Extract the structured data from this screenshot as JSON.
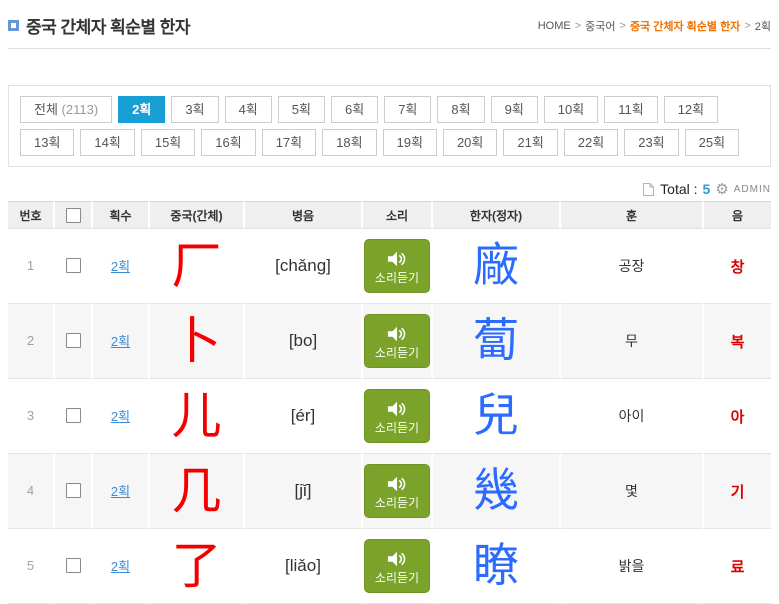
{
  "header": {
    "title": "중국 간체자 획순별 한자",
    "breadcrumb": {
      "items": [
        "HOME",
        "중국어",
        "중국 간체자 획순별 한자",
        "2획"
      ],
      "active_index": 2,
      "separator": ">"
    }
  },
  "filters": {
    "all_label": "전체",
    "all_count": "(2113)",
    "selected": "2획",
    "stroke_buttons": [
      "2획",
      "3획",
      "4획",
      "5획",
      "6획",
      "7획",
      "8획",
      "9획",
      "10획",
      "11획",
      "12획",
      "13획",
      "14획",
      "15획",
      "16획",
      "17획",
      "18획",
      "19획",
      "20획",
      "21획",
      "22획",
      "23획",
      "25획"
    ]
  },
  "summary": {
    "doc_icon": "document-icon",
    "total_label": "Total :",
    "total_value": "5",
    "gear_icon": "gear-icon",
    "gear_glyph": "⚙",
    "admin_label": "ADMIN"
  },
  "table": {
    "headers": [
      "번호",
      "획수",
      "중국(간체)",
      "병음",
      "소리",
      "한자(정자)",
      "훈",
      "음"
    ],
    "sound_button_label": "소리듣기",
    "rows": [
      {
        "no": "1",
        "strokes": "2획",
        "simplified": "厂",
        "pinyin": "[chǎng]",
        "traditional": "廠",
        "meaning": "공장",
        "reading": "창"
      },
      {
        "no": "2",
        "strokes": "2획",
        "simplified": "卜",
        "pinyin": "[bo]",
        "traditional": "蔔",
        "meaning": "무",
        "reading": "복"
      },
      {
        "no": "3",
        "strokes": "2획",
        "simplified": "儿",
        "pinyin": "[ér]",
        "traditional": "兒",
        "meaning": "아이",
        "reading": "아"
      },
      {
        "no": "4",
        "strokes": "2획",
        "simplified": "几",
        "pinyin": "[jǐ]",
        "traditional": "幾",
        "meaning": "몇",
        "reading": "기"
      },
      {
        "no": "5",
        "strokes": "2획",
        "simplified": "了",
        "pinyin": "[liǎo]",
        "traditional": "瞭",
        "meaning": "밝을",
        "reading": "료"
      }
    ]
  },
  "colors": {
    "selected_filter_blue": "#18a0d6",
    "link_blue": "#3a8ed8",
    "total_value_blue": "#2b9bd8",
    "traditional_blue": "#2b6cff",
    "simplified_red": "#f50000",
    "reading_red": "#dd0000",
    "breadcrumb_orange": "#ef7100",
    "sound_button_green": "#7ba32a",
    "header_row_gray": "#efefef"
  }
}
